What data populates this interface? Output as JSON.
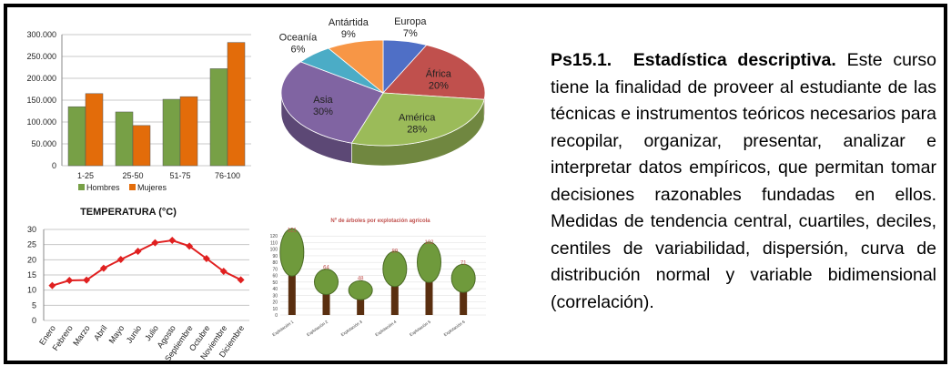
{
  "chart_data": [
    {
      "type": "bar",
      "categories": [
        "1-25",
        "25-50",
        "51-75",
        "76-100"
      ],
      "series": [
        {
          "name": "Hombres",
          "values": [
            135000,
            123000,
            152000,
            222000
          ],
          "color": "#77a046"
        },
        {
          "name": "Mujeres",
          "values": [
            165000,
            92000,
            158000,
            282000
          ],
          "color": "#e36c0a"
        }
      ],
      "yticks": [
        "0",
        "50.000",
        "100.000",
        "150.000",
        "200.000",
        "250.000",
        "300.000"
      ],
      "ylim": [
        0,
        300000
      ],
      "grid": true,
      "legend": "bottom"
    },
    {
      "type": "pie",
      "slices": [
        {
          "label": "Europa",
          "pct_label": "7%",
          "value": 7,
          "color": "#4f6fc6"
        },
        {
          "label": "África",
          "pct_label": "20%",
          "value": 20,
          "color": "#c0504d"
        },
        {
          "label": "América",
          "pct_label": "28%",
          "value": 28,
          "color": "#9bbb59"
        },
        {
          "label": "Asia",
          "pct_label": "30%",
          "value": 30,
          "color": "#8064a2"
        },
        {
          "label": "Oceanía",
          "pct_label": "6%",
          "value": 6,
          "color": "#4bacc6"
        },
        {
          "label": "Antártida",
          "pct_label": "9%",
          "value": 9,
          "color": "#f79646"
        }
      ]
    },
    {
      "type": "line",
      "title": "TEMPERATURA (°C)",
      "categories": [
        "Enero",
        "Febrero",
        "Marzo",
        "Abril",
        "Mayo",
        "Junio",
        "Julio",
        "Agosto",
        "Septiembre",
        "Octubre",
        "Noviembre",
        "Diciembre"
      ],
      "values": [
        11.5,
        13.2,
        13.3,
        17.2,
        20.1,
        22.8,
        25.6,
        26.4,
        24.5,
        20.4,
        16.2,
        13.4
      ],
      "yticks": [
        "0",
        "5",
        "10",
        "15",
        "20",
        "25",
        "30"
      ],
      "ylim": [
        0,
        30
      ],
      "color": "#e02020",
      "grid": true
    },
    {
      "type": "bar",
      "title": "Nº de árboles por explotación agrícola",
      "categories": [
        "Explotación 1",
        "Explotación 2",
        "Explotación 3",
        "Explotación 4",
        "Explotación 5",
        "Explotación 6"
      ],
      "values": [
        121,
        64,
        48,
        89,
        102,
        71
      ],
      "yticks": [
        "0",
        "10",
        "20",
        "30",
        "40",
        "50",
        "60",
        "70",
        "80",
        "90",
        "100",
        "110",
        "120"
      ],
      "ylim": [
        0,
        130
      ],
      "trunk_color": "#5a2f10",
      "crown_color": "#6f9a3c"
    }
  ],
  "description": {
    "code": "Ps15.1.",
    "title": "Estadística descriptiva.",
    "body": "Este curso tiene la finalidad de proveer al estudiante de las técnicas e instrumentos teóricos necesarios para recopilar, organizar, presentar, analizar e interpretar datos empíricos, que permitan tomar decisiones razonables fundadas en ellos. Medidas de tendencia central, cuartiles, deciles, centiles de variabilidad, dispersión, curva de distribución normal y variable bidimensional (correlación)."
  }
}
